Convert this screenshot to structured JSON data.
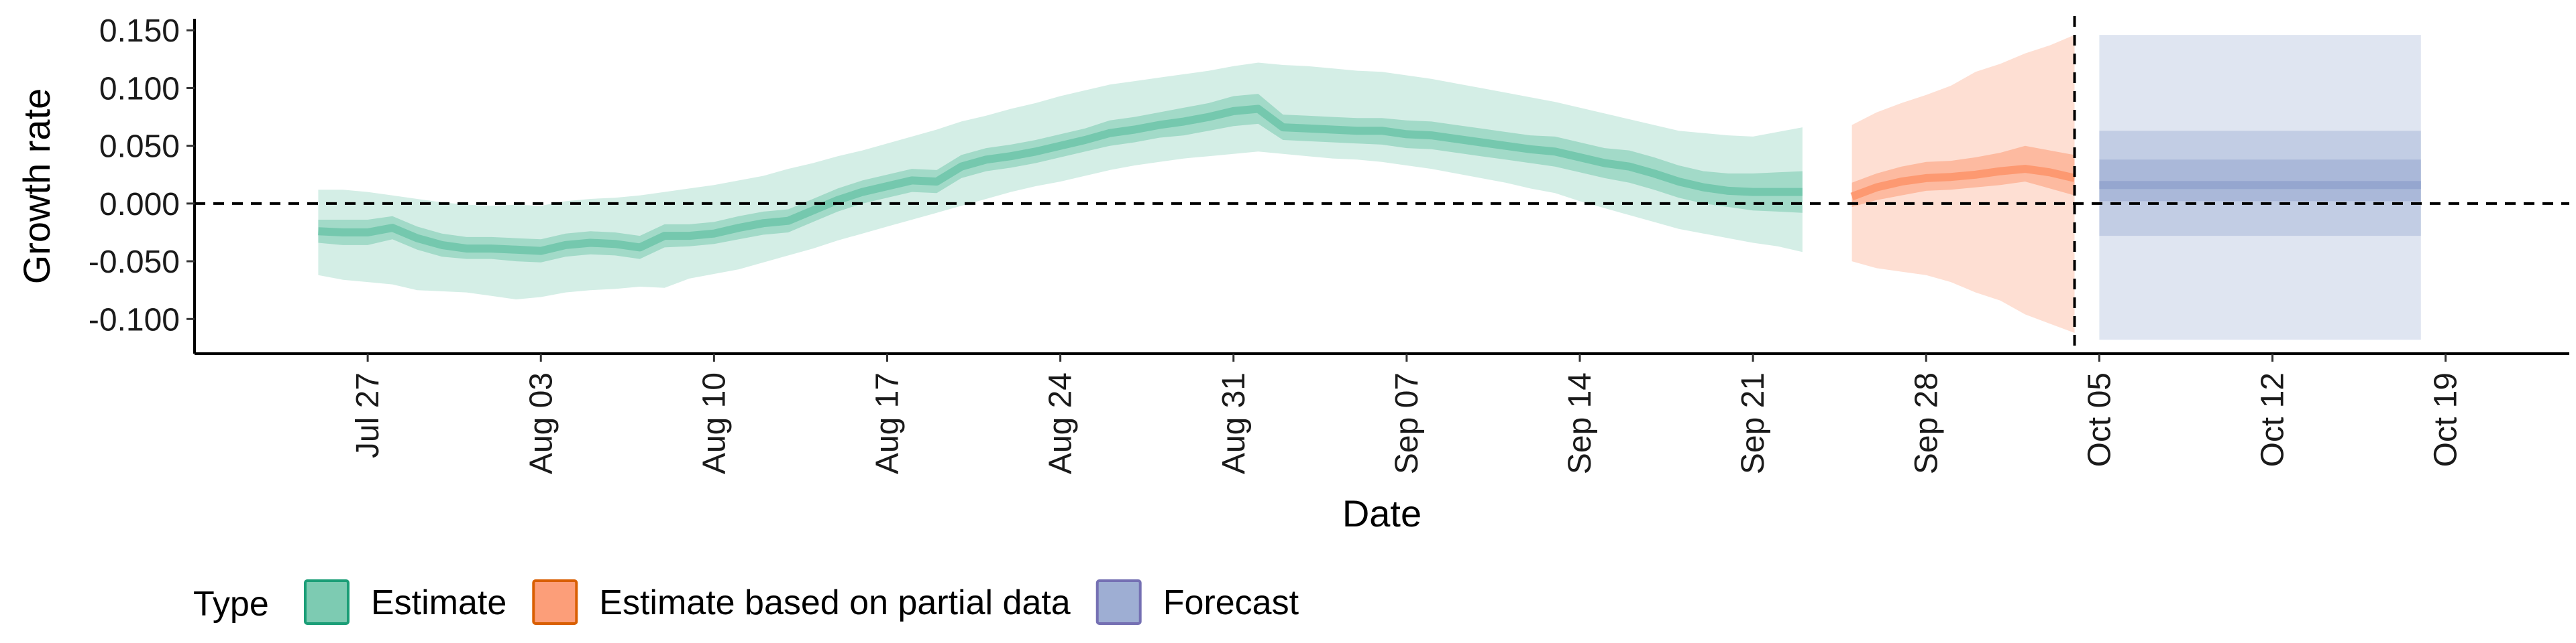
{
  "chart_data": {
    "type": "area",
    "title": "",
    "xlabel": "Date",
    "ylabel": "Growth rate",
    "x_ticks": [
      "Jul 27",
      "Aug 03",
      "Aug 10",
      "Aug 17",
      "Aug 24",
      "Aug 31",
      "Sep 07",
      "Sep 14",
      "Sep 21",
      "Sep 28",
      "Oct 05",
      "Oct 12",
      "Oct 19"
    ],
    "y_ticks": [
      "-0.100",
      "-0.050",
      "0.000",
      "0.050",
      "0.100",
      "0.150"
    ],
    "ylim": [
      -0.13,
      0.16
    ],
    "xlim": [
      "2021-07-20",
      "2021-10-24"
    ],
    "reference_lines": {
      "horizontal_y": 0,
      "vertical_date": "2021-10-04"
    },
    "legend": {
      "title": "Type",
      "position": "bottom-left"
    },
    "series": [
      {
        "name": "Estimate",
        "color": "#1b9e77",
        "fill": "#66c2a5",
        "x": [
          "2021-07-25",
          "2021-07-26",
          "2021-07-27",
          "2021-07-28",
          "2021-07-29",
          "2021-07-30",
          "2021-07-31",
          "2021-08-01",
          "2021-08-02",
          "2021-08-03",
          "2021-08-04",
          "2021-08-05",
          "2021-08-06",
          "2021-08-07",
          "2021-08-08",
          "2021-08-09",
          "2021-08-10",
          "2021-08-11",
          "2021-08-12",
          "2021-08-13",
          "2021-08-14",
          "2021-08-15",
          "2021-08-16",
          "2021-08-17",
          "2021-08-18",
          "2021-08-19",
          "2021-08-20",
          "2021-08-21",
          "2021-08-22",
          "2021-08-23",
          "2021-08-24",
          "2021-08-25",
          "2021-08-26",
          "2021-08-27",
          "2021-08-28",
          "2021-08-29",
          "2021-08-30",
          "2021-08-31",
          "2021-09-01",
          "2021-09-02",
          "2021-09-03",
          "2021-09-04",
          "2021-09-05",
          "2021-09-06",
          "2021-09-07",
          "2021-09-08",
          "2021-09-09",
          "2021-09-10",
          "2021-09-11",
          "2021-09-12",
          "2021-09-13",
          "2021-09-14",
          "2021-09-15",
          "2021-09-16",
          "2021-09-17",
          "2021-09-18",
          "2021-09-19",
          "2021-09-20",
          "2021-09-21",
          "2021-09-22",
          "2021-09-23"
        ],
        "median": [
          -0.024,
          -0.025,
          -0.025,
          -0.021,
          -0.03,
          -0.036,
          -0.039,
          -0.039,
          -0.04,
          -0.041,
          -0.036,
          -0.034,
          -0.035,
          -0.038,
          -0.028,
          -0.028,
          -0.026,
          -0.021,
          -0.017,
          -0.015,
          -0.006,
          0.003,
          0.01,
          0.015,
          0.02,
          0.019,
          0.032,
          0.038,
          0.041,
          0.045,
          0.05,
          0.055,
          0.061,
          0.064,
          0.068,
          0.071,
          0.075,
          0.08,
          0.082,
          0.066,
          0.065,
          0.064,
          0.063,
          0.063,
          0.06,
          0.059,
          0.056,
          0.053,
          0.05,
          0.047,
          0.045,
          0.04,
          0.035,
          0.032,
          0.026,
          0.019,
          0.014,
          0.011,
          0.01,
          0.01,
          0.01
        ],
        "inner_lo": [
          -0.034,
          -0.036,
          -0.036,
          -0.031,
          -0.04,
          -0.046,
          -0.048,
          -0.048,
          -0.05,
          -0.051,
          -0.046,
          -0.044,
          -0.045,
          -0.048,
          -0.038,
          -0.037,
          -0.035,
          -0.031,
          -0.027,
          -0.025,
          -0.016,
          -0.007,
          0.0,
          0.005,
          0.01,
          0.009,
          0.022,
          0.028,
          0.031,
          0.035,
          0.04,
          0.045,
          0.05,
          0.053,
          0.057,
          0.059,
          0.063,
          0.067,
          0.069,
          0.055,
          0.054,
          0.053,
          0.052,
          0.051,
          0.048,
          0.047,
          0.044,
          0.041,
          0.038,
          0.035,
          0.032,
          0.027,
          0.022,
          0.018,
          0.012,
          0.005,
          0.0,
          -0.003,
          -0.006,
          -0.007,
          -0.008
        ],
        "inner_hi": [
          -0.014,
          -0.014,
          -0.014,
          -0.011,
          -0.02,
          -0.026,
          -0.029,
          -0.029,
          -0.03,
          -0.031,
          -0.026,
          -0.024,
          -0.025,
          -0.028,
          -0.018,
          -0.018,
          -0.016,
          -0.011,
          -0.007,
          -0.005,
          0.004,
          0.013,
          0.02,
          0.025,
          0.03,
          0.029,
          0.042,
          0.048,
          0.051,
          0.055,
          0.06,
          0.065,
          0.072,
          0.075,
          0.079,
          0.083,
          0.087,
          0.093,
          0.095,
          0.077,
          0.076,
          0.075,
          0.074,
          0.074,
          0.072,
          0.071,
          0.068,
          0.065,
          0.062,
          0.059,
          0.058,
          0.053,
          0.048,
          0.046,
          0.04,
          0.033,
          0.028,
          0.026,
          0.026,
          0.027,
          0.028
        ],
        "outer_lo": [
          -0.062,
          -0.066,
          -0.068,
          -0.07,
          -0.075,
          -0.076,
          -0.077,
          -0.08,
          -0.083,
          -0.081,
          -0.077,
          -0.075,
          -0.074,
          -0.072,
          -0.073,
          -0.065,
          -0.061,
          -0.057,
          -0.051,
          -0.045,
          -0.039,
          -0.032,
          -0.026,
          -0.02,
          -0.014,
          -0.008,
          -0.002,
          0.004,
          0.01,
          0.015,
          0.019,
          0.024,
          0.029,
          0.033,
          0.036,
          0.039,
          0.041,
          0.043,
          0.045,
          0.043,
          0.041,
          0.039,
          0.038,
          0.036,
          0.033,
          0.03,
          0.026,
          0.022,
          0.018,
          0.013,
          0.009,
          0.002,
          -0.004,
          -0.01,
          -0.016,
          -0.022,
          -0.026,
          -0.03,
          -0.034,
          -0.037,
          -0.042
        ],
        "outer_hi": [
          0.012,
          0.012,
          0.01,
          0.007,
          0.004,
          0.001,
          -0.001,
          -0.002,
          -0.001,
          -0.002,
          0.002,
          0.004,
          0.005,
          0.007,
          0.01,
          0.013,
          0.016,
          0.02,
          0.024,
          0.03,
          0.035,
          0.041,
          0.046,
          0.052,
          0.058,
          0.064,
          0.071,
          0.076,
          0.082,
          0.087,
          0.093,
          0.098,
          0.103,
          0.106,
          0.109,
          0.112,
          0.115,
          0.119,
          0.122,
          0.12,
          0.119,
          0.117,
          0.115,
          0.114,
          0.111,
          0.108,
          0.104,
          0.1,
          0.096,
          0.092,
          0.088,
          0.083,
          0.078,
          0.073,
          0.068,
          0.063,
          0.061,
          0.059,
          0.058,
          0.062,
          0.066
        ]
      },
      {
        "name": "Estimate based on partial data",
        "color": "#d95f02",
        "fill": "#fc8d62",
        "x": [
          "2021-09-25",
          "2021-09-26",
          "2021-09-27",
          "2021-09-28",
          "2021-09-29",
          "2021-09-30",
          "2021-10-01",
          "2021-10-02",
          "2021-10-03",
          "2021-10-04"
        ],
        "median": [
          0.006,
          0.014,
          0.019,
          0.022,
          0.023,
          0.025,
          0.028,
          0.03,
          0.027,
          0.022
        ],
        "inner_lo": [
          -0.003,
          0.003,
          0.007,
          0.011,
          0.012,
          0.014,
          0.016,
          0.019,
          0.013,
          0.007
        ],
        "inner_hi": [
          0.018,
          0.026,
          0.032,
          0.036,
          0.037,
          0.04,
          0.044,
          0.05,
          0.046,
          0.042
        ],
        "outer_lo": [
          -0.05,
          -0.056,
          -0.059,
          -0.062,
          -0.068,
          -0.077,
          -0.084,
          -0.096,
          -0.104,
          -0.112
        ],
        "outer_hi": [
          0.068,
          0.079,
          0.087,
          0.094,
          0.102,
          0.114,
          0.121,
          0.13,
          0.137,
          0.146
        ]
      },
      {
        "name": "Forecast",
        "color": "#7570b3",
        "fill": "#8da0cb",
        "x": [
          "2021-10-05",
          "2021-10-18"
        ],
        "median": [
          0.016,
          0.016
        ],
        "inner_lo": [
          0.002,
          0.002
        ],
        "inner_hi": [
          0.038,
          0.038
        ],
        "mid_lo": [
          -0.028,
          -0.028
        ],
        "mid_hi": [
          0.063,
          0.063
        ],
        "outer_lo": [
          -0.118,
          -0.118
        ],
        "outer_hi": [
          0.146,
          0.146
        ]
      }
    ]
  }
}
